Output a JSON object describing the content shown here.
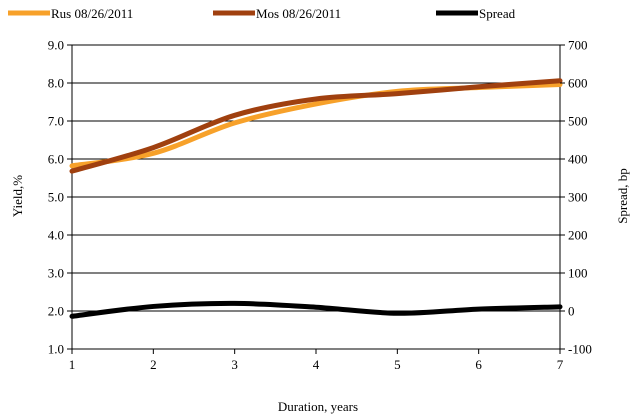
{
  "chart_data": {
    "type": "line",
    "title": "",
    "xlabel": "Duration, years",
    "ylabel": "Yield,%",
    "y2label": "Spread, bp",
    "x": [
      1,
      2,
      3,
      4,
      5,
      6,
      7
    ],
    "xlim": [
      1,
      7
    ],
    "ylim": [
      1.0,
      9.0
    ],
    "y2lim": [
      -100,
      700
    ],
    "x_ticks": [
      "1",
      "2",
      "3",
      "4",
      "5",
      "6",
      "7"
    ],
    "y_ticks": [
      "9.0",
      "8.0",
      "7.0",
      "6.0",
      "5.0",
      "4.0",
      "3.0",
      "2.0",
      "1.0"
    ],
    "y2_ticks": [
      "700",
      "600",
      "500",
      "400",
      "300",
      "200",
      "100",
      "0",
      "-100"
    ],
    "grid": "horizontal",
    "legend_position": "top",
    "series": [
      {
        "name": "Rus 08/26/2011",
        "axis": "left",
        "color": "#F7A12A",
        "values": [
          5.82,
          6.15,
          6.95,
          7.45,
          7.78,
          7.88,
          7.96
        ]
      },
      {
        "name": "Mos 08/26/2011",
        "axis": "left",
        "color": "#A0400F",
        "values": [
          5.68,
          6.3,
          7.15,
          7.58,
          7.72,
          7.9,
          8.06
        ]
      },
      {
        "name": "Spread",
        "axis": "right",
        "color": "#000000",
        "values": [
          -14,
          12,
          20,
          10,
          -6,
          5,
          11
        ]
      }
    ]
  }
}
